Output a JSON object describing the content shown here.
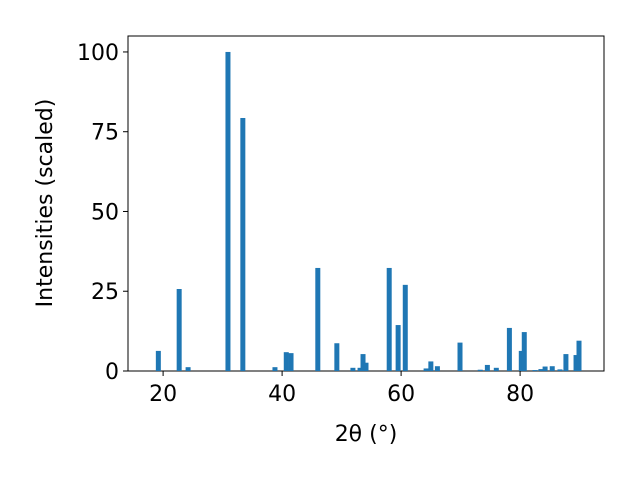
{
  "chart_data": {
    "type": "bar",
    "x_label": "2θ (°)",
    "y_label": "Intensities (scaled)",
    "x": [
      19.2,
      22.7,
      24.2,
      30.9,
      33.4,
      38.8,
      40.7,
      41.5,
      46.0,
      49.2,
      51.9,
      53.1,
      53.6,
      54.1,
      58.0,
      59.5,
      60.7,
      64.2,
      65.0,
      66.1,
      69.9,
      73.3,
      74.5,
      76.0,
      78.2,
      80.2,
      80.7,
      82.5,
      83.5,
      84.2,
      85.4,
      86.7,
      87.7,
      89.4,
      89.9
    ],
    "values": [
      6.3,
      25.7,
      1.2,
      100,
      79.3,
      1.2,
      5.9,
      5.6,
      32.3,
      8.7,
      1.0,
      1.0,
      5.3,
      2.6,
      32.3,
      14.4,
      27.0,
      0.8,
      3.0,
      1.5,
      8.9,
      0.4,
      1.9,
      1.0,
      13.5,
      6.3,
      12.2,
      0.3,
      0.6,
      1.4,
      1.5,
      0.5,
      5.3,
      5.0,
      9.5
    ],
    "color": "#1f77b4",
    "xlim": [
      14.1,
      94.1
    ],
    "xticks": [
      20,
      40,
      60,
      80
    ],
    "ylim": [
      0,
      105
    ],
    "yticks": [
      0,
      25,
      50,
      75,
      100
    ],
    "grid": false
  }
}
